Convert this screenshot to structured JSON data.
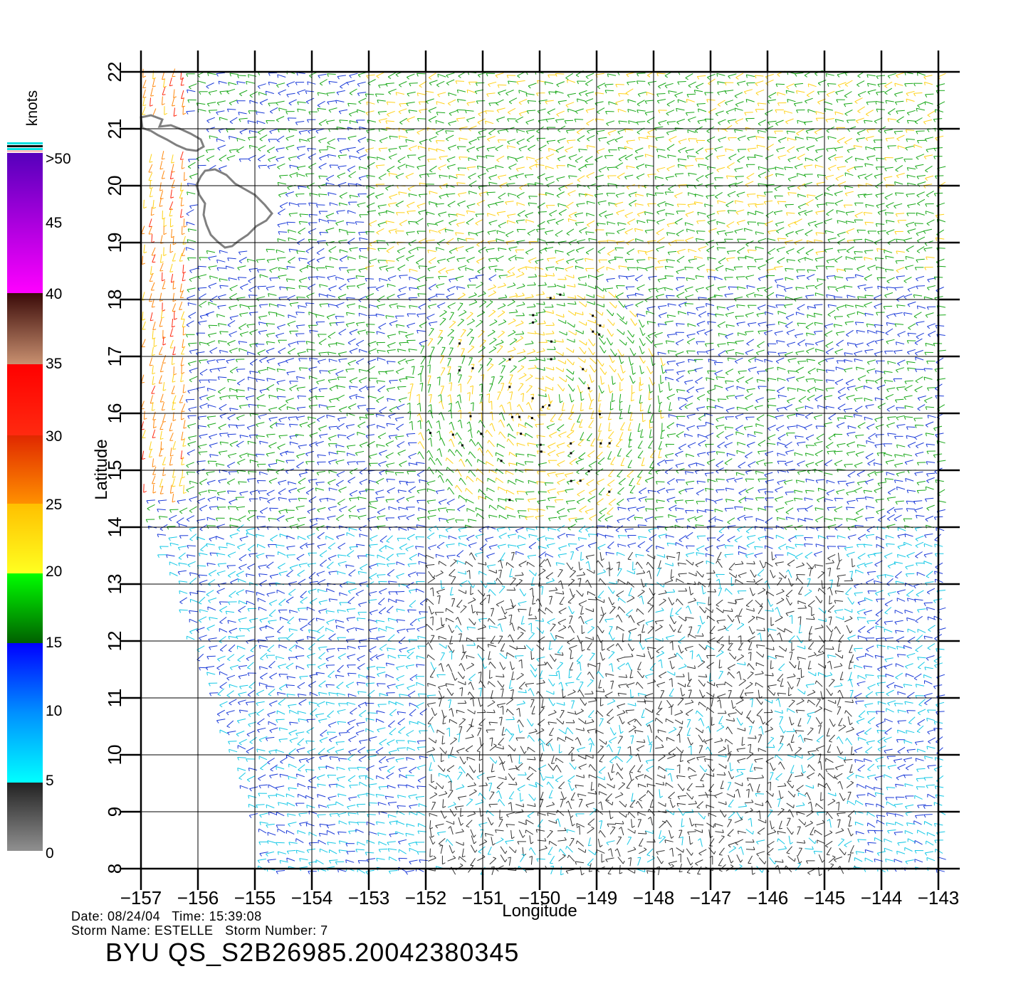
{
  "chart_data": {
    "type": "wind-vector-map",
    "xlabel": "Longitude",
    "ylabel": "Latitude",
    "xlim": [
      -157,
      -143
    ],
    "ylim": [
      8,
      22
    ],
    "x_ticks": [
      "-157",
      "-156",
      "-155",
      "-154",
      "-153",
      "-152",
      "-151",
      "-150",
      "-149",
      "-148",
      "-147",
      "-146",
      "-145",
      "-144",
      "-143"
    ],
    "y_ticks": [
      "8",
      "9",
      "10",
      "11",
      "12",
      "13",
      "14",
      "15",
      "16",
      "17",
      "18",
      "19",
      "20",
      "21",
      "22"
    ],
    "grid": true,
    "coastlines": "Hawaiian Islands (upper-left)",
    "storm_center_approx": {
      "lon": -150.0,
      "lat": 16.2
    }
  },
  "legend": {
    "unit_label": "knots",
    "labels": [
      ">50",
      "45",
      "40",
      "35",
      "30",
      "25",
      "20",
      "15",
      "10",
      "5",
      "0"
    ],
    "speed_colors": [
      {
        "range": "0-5",
        "color": "#333333"
      },
      {
        "range": "5-10",
        "color": "#00c8e6"
      },
      {
        "range": "10-15",
        "color": "#1030e0"
      },
      {
        "range": "15-20",
        "color": "#00a000"
      },
      {
        "range": "20-25",
        "color": "#ffd000"
      },
      {
        "range": "25-30",
        "color": "#ff8000"
      },
      {
        "range": "30-35",
        "color": "#ff2000"
      },
      {
        "range": "35-40",
        "color": "#8b4a30"
      },
      {
        "range": "40-45",
        "color": "#e000e0"
      },
      {
        "range": ">45",
        "color": "#7000c0"
      }
    ]
  },
  "footer": {
    "date_line": "Date: 08/24/04   Time: 15:39:08",
    "storm_line": "Storm Name: ESTELLE   Storm Number: 7",
    "title": "BYU QS_S2B26985.20042380345"
  }
}
